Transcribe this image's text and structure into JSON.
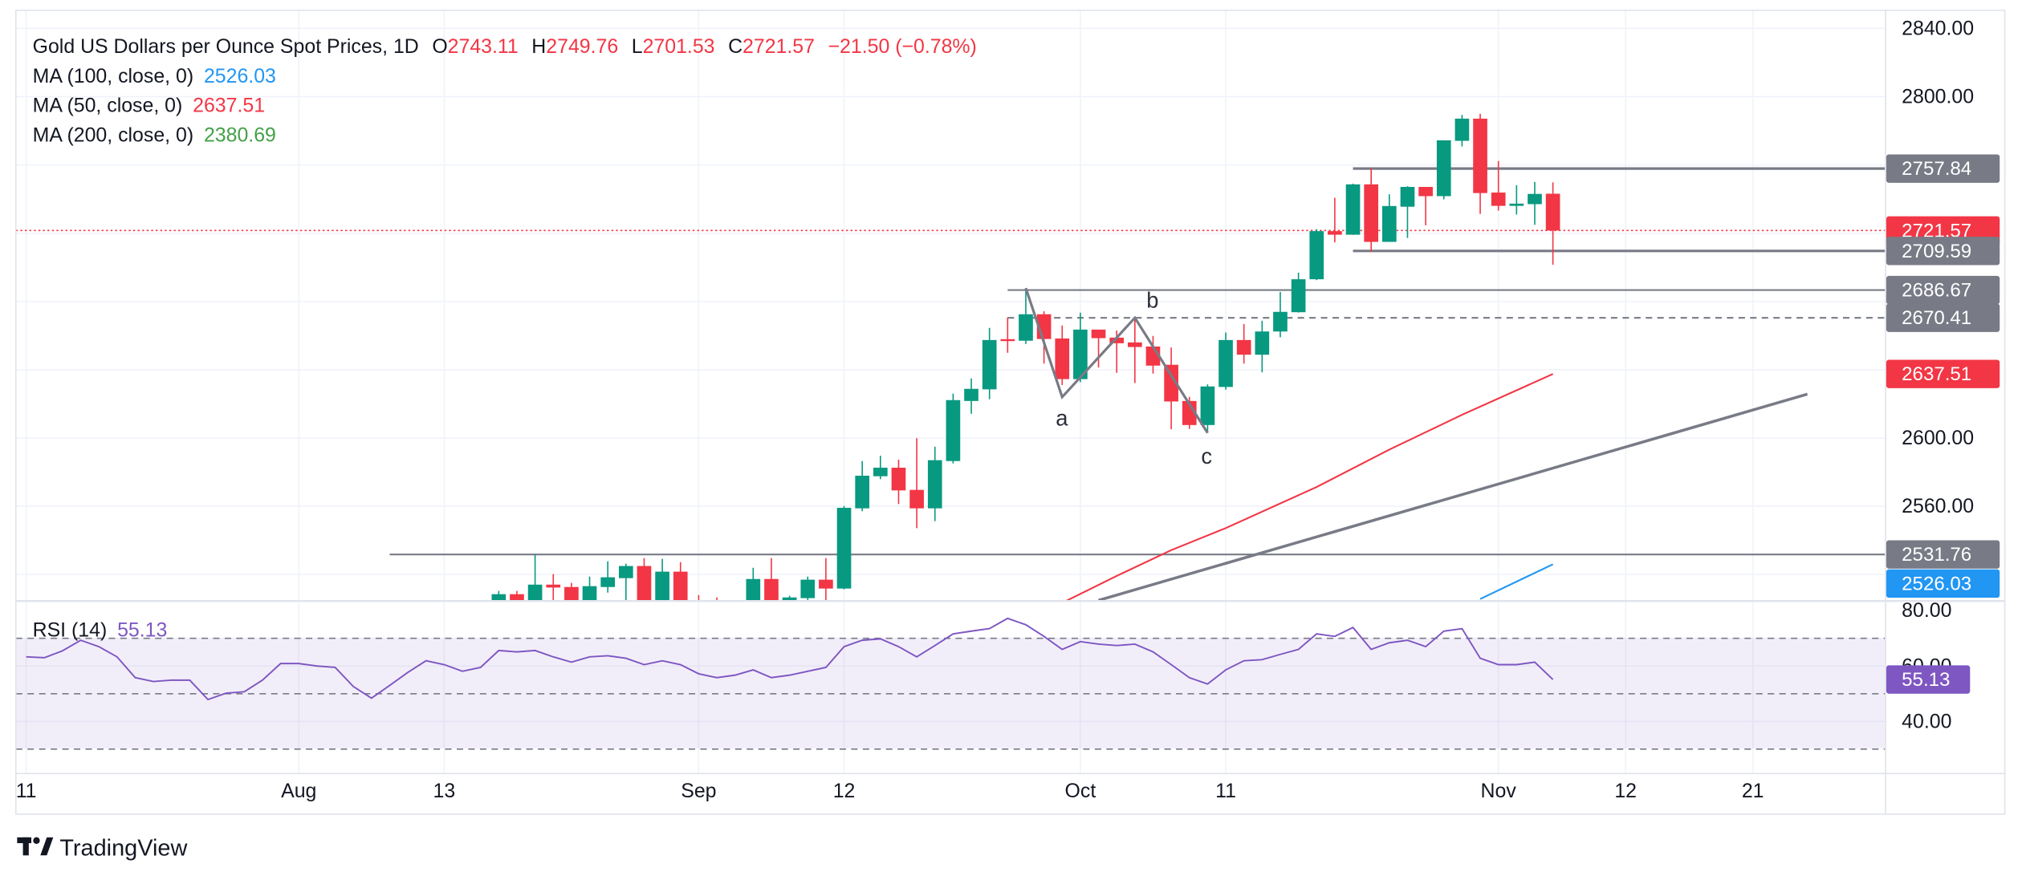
{
  "header": {
    "title": "Gold US Dollars per Ounce Spot Prices, 1D",
    "o_label": "O",
    "open": "2743.11",
    "h_label": "H",
    "high": "2749.76",
    "l_label": "L",
    "low": "2701.53",
    "c_label": "C",
    "close": "2721.57",
    "change": "−21.50 (−0.78%)",
    "value_color": "#f23645"
  },
  "indicators": [
    {
      "label": "MA (100, close, 0)",
      "value": "2526.03",
      "color": "#2196f3"
    },
    {
      "label": "MA (50, close, 0)",
      "value": "2637.51",
      "color": "#f23645"
    },
    {
      "label": "MA (200, close, 0)",
      "value": "2380.69",
      "color": "#43a047"
    }
  ],
  "rsi": {
    "label": "RSI (14)",
    "value": "55.13",
    "color": "#7e57c2"
  },
  "price_axis": {
    "ticks": [
      "2840.00",
      "2800.00",
      "2600.00",
      "2560.00"
    ],
    "markers": [
      {
        "value": "2757.84",
        "color": "#787b86"
      },
      {
        "value": "2721.57",
        "color": "#f23645"
      },
      {
        "value": "2709.59",
        "color": "#787b86"
      },
      {
        "value": "2686.67",
        "color": "#787b86"
      },
      {
        "value": "2670.41",
        "color": "#787b86"
      },
      {
        "value": "2637.51",
        "color": "#f23645"
      },
      {
        "value": "2531.76",
        "color": "#787b86"
      },
      {
        "value": "2526.03",
        "color": "#2196f3"
      }
    ]
  },
  "rsi_axis": {
    "ticks": [
      "80.00",
      "60.00",
      "40.00"
    ],
    "marker": "55.13"
  },
  "time_axis": {
    "labels": [
      "11",
      "Aug",
      "13",
      "Sep",
      "12",
      "Oct",
      "11",
      "Nov",
      "12",
      "21"
    ]
  },
  "annotations": {
    "wave_labels": [
      "a",
      "b",
      "c"
    ]
  },
  "logo": "TradingView",
  "colors": {
    "up": "#089981",
    "down": "#f23645",
    "ma50": "#f23645",
    "ma100": "#2196f3",
    "drawing": "#787b86",
    "rsi": "#7e57c2"
  },
  "chart_data": {
    "type": "candlestick",
    "title": "Gold US Dollars per Ounce Spot Prices, 1D",
    "y_range": [
      2505,
      2850
    ],
    "grid": true,
    "time_ticks": [
      {
        "label": "11",
        "date": "2024-07-11"
      },
      {
        "label": "Aug",
        "date": "2024-08-01"
      },
      {
        "label": "13",
        "date": "2024-08-13"
      },
      {
        "label": "Sep",
        "date": "2024-09-02"
      },
      {
        "label": "12",
        "date": "2024-09-12"
      },
      {
        "label": "Oct",
        "date": "2024-10-01"
      },
      {
        "label": "11",
        "date": "2024-10-11"
      },
      {
        "label": "Nov",
        "date": "2024-11-01"
      },
      {
        "label": "12",
        "date": "2024-11-12"
      },
      {
        "label": "21",
        "date": "2024-11-21"
      }
    ],
    "candles_columns": [
      "date",
      "open",
      "high",
      "low",
      "close"
    ],
    "candles": [
      [
        "2024-08-16",
        2500,
        2510.4,
        2495,
        2508.5
      ],
      [
        "2024-08-19",
        2508.5,
        2510.4,
        2495,
        2502
      ],
      [
        "2024-08-20",
        2500,
        2531.7,
        2495,
        2514.1
      ],
      [
        "2024-08-21",
        2514.1,
        2520.3,
        2500,
        2512.4
      ],
      [
        "2024-08-22",
        2512.7,
        2515.1,
        2495,
        2505
      ],
      [
        "2024-08-23",
        2505,
        2518.8,
        2495,
        2513.2
      ],
      [
        "2024-08-26",
        2512.7,
        2527.8,
        2509.4,
        2518.4
      ],
      [
        "2024-08-27",
        2517.9,
        2526.4,
        2500,
        2525.0
      ],
      [
        "2024-08-28",
        2525.0,
        2529.6,
        2495,
        2505
      ],
      [
        "2024-08-29",
        2505,
        2529.2,
        2495,
        2521.7
      ],
      [
        "2024-08-30",
        2521.7,
        2527.3,
        2495,
        2505
      ],
      [
        "2024-09-02",
        2500,
        2508,
        2490,
        2495
      ],
      [
        "2024-09-03",
        2498,
        2506.6,
        2488,
        2494
      ],
      [
        "2024-09-05",
        2500,
        2524.0,
        2495,
        2517.4
      ],
      [
        "2024-09-06",
        2517.4,
        2529.6,
        2495,
        2500
      ],
      [
        "2024-09-09",
        2504,
        2507.6,
        2500,
        2506.6
      ],
      [
        "2024-09-10",
        2506.2,
        2518.8,
        2505,
        2517.0
      ],
      [
        "2024-09-11",
        2517.0,
        2529.6,
        2503,
        2511.8
      ],
      [
        "2024-09-12",
        2511.8,
        2560.2,
        2511.3,
        2559.1
      ],
      [
        "2024-09-13",
        2558.8,
        2586.5,
        2557.1,
        2577.9
      ],
      [
        "2024-09-16",
        2577.6,
        2589.6,
        2575.9,
        2582.6
      ],
      [
        "2024-09-17",
        2582.6,
        2587.3,
        2561.3,
        2569.3
      ],
      [
        "2024-09-18",
        2569.6,
        2599.9,
        2547.2,
        2558.8
      ],
      [
        "2024-09-19",
        2558.8,
        2594.9,
        2551.3,
        2587.0
      ],
      [
        "2024-09-20",
        2586.5,
        2626.0,
        2585.1,
        2622.2
      ],
      [
        "2024-09-23",
        2621.7,
        2634.9,
        2614.2,
        2628.8
      ],
      [
        "2024-09-24",
        2628.5,
        2664.5,
        2622.7,
        2657.4
      ],
      [
        "2024-09-25",
        2657.9,
        2670.6,
        2649.9,
        2657.2
      ],
      [
        "2024-09-26",
        2657.0,
        2687.8,
        2655.1,
        2672.5
      ],
      [
        "2024-09-27",
        2672.5,
        2674.3,
        2643.6,
        2658.0
      ],
      [
        "2024-09-30",
        2658.3,
        2665.9,
        2631.0,
        2634.5
      ],
      [
        "2024-10-01",
        2634.5,
        2673.4,
        2632.7,
        2663.5
      ],
      [
        "2024-10-02",
        2663.5,
        2663.5,
        2641.3,
        2658.5
      ],
      [
        "2024-10-03",
        2658.8,
        2663.0,
        2638.2,
        2655.5
      ],
      [
        "2024-10-04",
        2656.0,
        2669.5,
        2632.2,
        2653.3
      ],
      [
        "2024-10-07",
        2653.6,
        2659.8,
        2637.7,
        2642.4
      ],
      [
        "2024-10-08",
        2642.9,
        2653.0,
        2605.1,
        2621.4
      ],
      [
        "2024-10-09",
        2621.7,
        2624.1,
        2605.3,
        2607.6
      ],
      [
        "2024-10-10",
        2607.6,
        2631.4,
        2603.0,
        2630.2
      ],
      [
        "2024-10-11",
        2629.9,
        2661.8,
        2628.3,
        2657.4
      ],
      [
        "2024-10-14",
        2657.4,
        2666.8,
        2643.6,
        2648.8
      ],
      [
        "2024-10-15",
        2648.8,
        2668.7,
        2638.5,
        2662.4
      ],
      [
        "2024-10-16",
        2662.4,
        2685.6,
        2659.0,
        2673.9
      ],
      [
        "2024-10-17",
        2673.7,
        2696.9,
        2673.5,
        2693.0
      ],
      [
        "2024-10-18",
        2693.0,
        2722.3,
        2692.5,
        2721.2
      ],
      [
        "2024-10-21",
        2721.2,
        2740.7,
        2714.6,
        2719.1
      ],
      [
        "2024-10-22",
        2719.1,
        2749.0,
        2719.0,
        2748.6
      ],
      [
        "2024-10-23",
        2748.6,
        2758.3,
        2709.0,
        2714.9
      ],
      [
        "2024-10-24",
        2714.9,
        2742.8,
        2714.9,
        2735.9
      ],
      [
        "2024-10-25",
        2735.5,
        2747.5,
        2717.2,
        2747.1
      ],
      [
        "2024-10-28",
        2747.1,
        2747.1,
        2724.6,
        2741.7
      ],
      [
        "2024-10-29",
        2741.7,
        2774.4,
        2739.8,
        2774.4
      ],
      [
        "2024-10-30",
        2774.1,
        2789.3,
        2770.8,
        2787.1
      ],
      [
        "2024-10-31",
        2787.1,
        2789.9,
        2731.3,
        2743.5
      ],
      [
        "2024-11-01",
        2743.8,
        2762.3,
        2733.2,
        2736.0
      ],
      [
        "2024-11-04",
        2736.0,
        2748.1,
        2730.9,
        2737.3
      ],
      [
        "2024-11-05",
        2737.0,
        2750.0,
        2724.9,
        2743.0
      ],
      [
        "2024-11-06",
        2743.11,
        2749.76,
        2701.53,
        2721.57
      ]
    ],
    "ma50": [
      [
        "2024-09-30",
        2503.4
      ],
      [
        "2024-10-03",
        2519.2
      ],
      [
        "2024-10-08",
        2534.3
      ],
      [
        "2024-10-11",
        2547.2
      ],
      [
        "2024-10-18",
        2571.3
      ],
      [
        "2024-10-24",
        2593.2
      ],
      [
        "2024-10-30",
        2613.6
      ],
      [
        "2024-11-06",
        2637.51
      ]
    ],
    "ma100": [
      [
        "2024-10-31",
        2505.7
      ],
      [
        "2024-11-06",
        2526.03
      ]
    ],
    "last_price": 2721.57,
    "horizontal_lines": [
      {
        "price": 2757.84,
        "from": "2024-10-22",
        "style": "solid"
      },
      {
        "price": 2709.59,
        "from": "2024-10-22",
        "style": "solid"
      },
      {
        "price": 2686.67,
        "from": "2024-09-25",
        "style": "solid"
      },
      {
        "price": 2670.41,
        "from": "2024-09-25",
        "style": "dashed"
      },
      {
        "price": 2531.76,
        "from": "2024-08-08",
        "style": "solid"
      }
    ],
    "trend_line": [
      [
        "2024-10-02",
        2504.9
      ],
      [
        "2024-11-26",
        2625.7
      ]
    ],
    "abc_wave": [
      [
        "2024-09-26",
        2687.8,
        ""
      ],
      [
        "2024-09-30",
        2624.0,
        "a"
      ],
      [
        "2024-10-04",
        2670.4,
        "b"
      ],
      [
        "2024-10-10",
        2603.0,
        "c"
      ]
    ],
    "rsi": {
      "period": 14,
      "y_range": [
        25,
        85
      ],
      "levels": [
        70,
        50,
        30
      ],
      "first_date": "2024-07-11",
      "values": [
        63.3,
        63,
        65.5,
        69.3,
        67,
        63.3,
        55.8,
        54.4,
        54.9,
        54.9,
        47.9,
        50.2,
        50.7,
        54.9,
        60.9,
        60.9,
        60,
        59.5,
        52.6,
        48.4,
        53,
        57.7,
        61.9,
        60.5,
        58.1,
        59.5,
        65.6,
        65.1,
        65.6,
        63.3,
        61.4,
        63.3,
        63.7,
        62.8,
        60.5,
        61.9,
        60.5,
        57.2,
        55.8,
        56.7,
        58.6,
        55.8,
        56.7,
        58.1,
        59.5,
        67,
        69.3,
        69.8,
        67,
        63.3,
        67.4,
        71.6,
        72.6,
        73.5,
        77.2,
        74.9,
        70.7,
        66,
        68.8,
        67.9,
        67.4,
        67.9,
        65.1,
        60.5,
        55.8,
        53.5,
        58.6,
        61.9,
        62.3,
        64.2,
        66,
        71.6,
        70.7,
        73.9,
        66,
        68.4,
        69.3,
        67,
        72.6,
        73.5,
        62.8,
        60.5,
        60.5,
        61.4,
        55.13
      ]
    }
  }
}
